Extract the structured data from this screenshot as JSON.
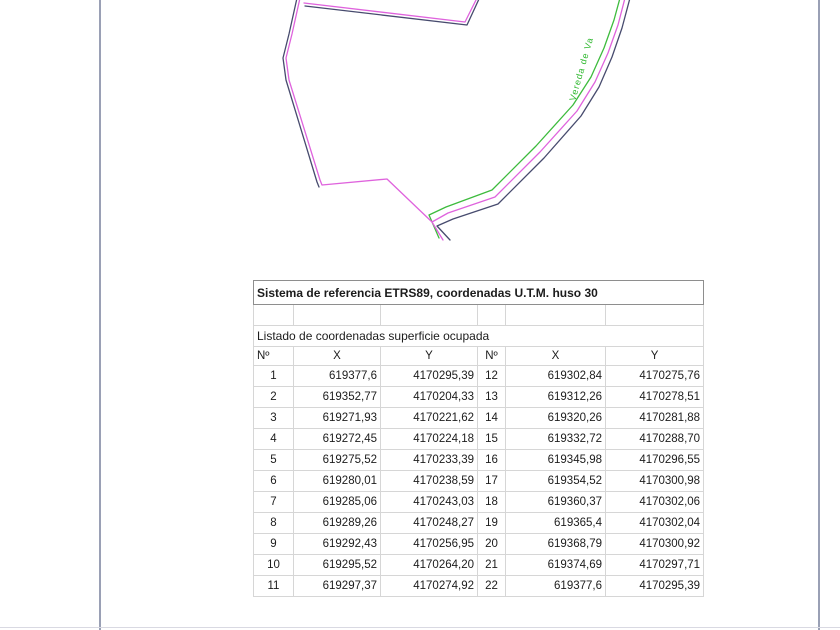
{
  "page": {
    "margin_line_color": "#9aa0b5",
    "background": "#ffffff"
  },
  "map": {
    "path_label": "Vereda de Va",
    "colors": {
      "parcel_line": "#df63dd",
      "offset_line": "#474b6e",
      "path_line": "#3dbb3d",
      "label": "#2eb82e"
    }
  },
  "table": {
    "title": "Sistema de referencia ETRS89, coordenadas U.T.M. huso 30",
    "subtitle": "Listado de coordenadas superficie ocupada",
    "headers": [
      "Nº",
      "X",
      "Y",
      "Nº",
      "X",
      "Y"
    ],
    "rows": [
      [
        "1",
        "619377,6",
        "4170295,39",
        "12",
        "619302,84",
        "4170275,76"
      ],
      [
        "2",
        "619352,77",
        "4170204,33",
        "13",
        "619312,26",
        "4170278,51"
      ],
      [
        "3",
        "619271,93",
        "4170221,62",
        "14",
        "619320,26",
        "4170281,88"
      ],
      [
        "4",
        "619272,45",
        "4170224,18",
        "15",
        "619332,72",
        "4170288,70"
      ],
      [
        "5",
        "619275,52",
        "4170233,39",
        "16",
        "619345,98",
        "4170296,55"
      ],
      [
        "6",
        "619280,01",
        "4170238,59",
        "17",
        "619354,52",
        "4170300,98"
      ],
      [
        "7",
        "619285,06",
        "4170243,03",
        "18",
        "619360,37",
        "4170302,06"
      ],
      [
        "8",
        "619289,26",
        "4170248,27",
        "19",
        "619365,4",
        "4170302,04"
      ],
      [
        "9",
        "619292,43",
        "4170256,95",
        "20",
        "619368,79",
        "4170300,92"
      ],
      [
        "10",
        "619295,52",
        "4170264,20",
        "21",
        "619374,69",
        "4170297,71"
      ],
      [
        "11",
        "619297,37",
        "4170274,92",
        "22",
        "619377,6",
        "4170295,39"
      ]
    ]
  }
}
